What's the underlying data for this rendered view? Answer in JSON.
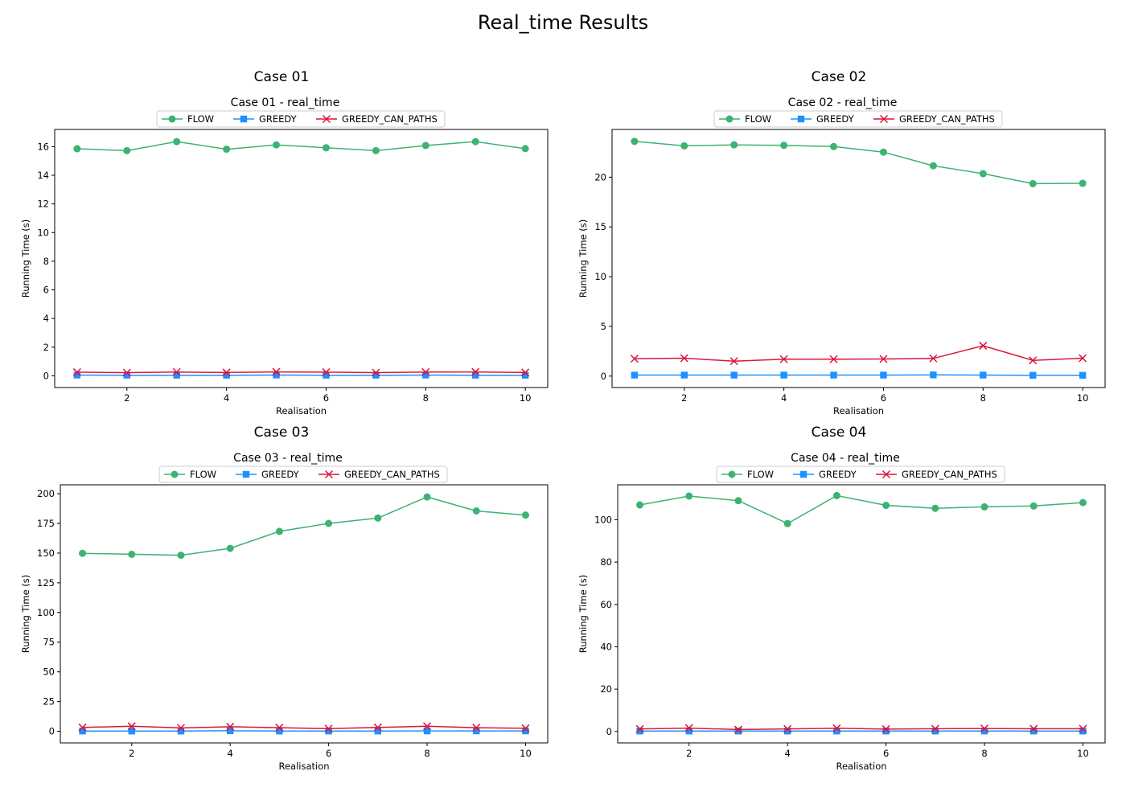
{
  "figure": {
    "title": "Real_time Results"
  },
  "series_names": [
    "FLOW",
    "GREEDY",
    "GREEDY_CAN_PATHS"
  ],
  "colors": {
    "FLOW": "#3cb371",
    "GREEDY": "#1e90ff",
    "GREEDY_CAN_PATHS": "#dc143c",
    "axis": "#000000"
  },
  "markers": {
    "FLOW": "circle",
    "GREEDY": "square",
    "GREEDY_CAN_PATHS": "x"
  },
  "chart_data": [
    {
      "type": "line",
      "case_title": "Case 01",
      "title": "Case 01 - real_time",
      "xlabel": "Realisation",
      "ylabel": "Running Time (s)",
      "x": [
        1,
        2,
        3,
        4,
        5,
        6,
        7,
        8,
        9,
        10
      ],
      "xticks": [
        2,
        4,
        6,
        8,
        10
      ],
      "yticks": [
        0,
        2,
        4,
        6,
        8,
        10,
        12,
        14,
        16
      ],
      "ylim": [
        -0.82,
        17.2
      ],
      "legend": "top-center, above plot",
      "series": [
        {
          "name": "FLOW",
          "values": [
            15.85,
            15.72,
            16.35,
            15.82,
            16.12,
            15.92,
            15.72,
            16.08,
            16.35,
            15.86
          ]
        },
        {
          "name": "GREEDY",
          "values": [
            0.05,
            0.04,
            0.04,
            0.04,
            0.05,
            0.04,
            0.04,
            0.05,
            0.04,
            0.04
          ]
        },
        {
          "name": "GREEDY_CAN_PATHS",
          "values": [
            0.25,
            0.22,
            0.26,
            0.23,
            0.27,
            0.25,
            0.22,
            0.26,
            0.27,
            0.23
          ]
        }
      ]
    },
    {
      "type": "line",
      "case_title": "Case 02",
      "title": "Case 02 - real_time",
      "xlabel": "Realisation",
      "ylabel": "Running Time (s)",
      "x": [
        1,
        2,
        3,
        4,
        5,
        6,
        7,
        8,
        9,
        10
      ],
      "xticks": [
        2,
        4,
        6,
        8,
        10
      ],
      "yticks": [
        0,
        5,
        10,
        15,
        20
      ],
      "ylim": [
        -1.15,
        24.8
      ],
      "legend": "top-center, above plot",
      "series": [
        {
          "name": "FLOW",
          "values": [
            23.6,
            23.15,
            23.25,
            23.2,
            23.08,
            22.52,
            21.15,
            20.35,
            19.35,
            19.38
          ]
        },
        {
          "name": "GREEDY",
          "values": [
            0.1,
            0.1,
            0.1,
            0.1,
            0.1,
            0.1,
            0.12,
            0.1,
            0.08,
            0.08
          ]
        },
        {
          "name": "GREEDY_CAN_PATHS",
          "values": [
            1.75,
            1.8,
            1.5,
            1.7,
            1.7,
            1.72,
            1.78,
            3.05,
            1.58,
            1.8
          ]
        }
      ]
    },
    {
      "type": "line",
      "case_title": "Case 03",
      "title": "Case 03 - real_time",
      "xlabel": "Realisation",
      "ylabel": "Running Time (s)",
      "x": [
        1,
        2,
        3,
        4,
        5,
        6,
        7,
        8,
        9,
        10
      ],
      "xticks": [
        2,
        4,
        6,
        8,
        10
      ],
      "yticks": [
        0,
        25,
        50,
        75,
        100,
        125,
        150,
        175,
        200
      ],
      "ylim": [
        -9.8,
        207.5
      ],
      "legend": "top-center, above plot",
      "series": [
        {
          "name": "FLOW",
          "values": [
            149.8,
            149.0,
            148.2,
            154.0,
            168.3,
            175.0,
            179.5,
            197.3,
            185.5,
            182.0
          ]
        },
        {
          "name": "GREEDY",
          "values": [
            0.2,
            0.2,
            0.2,
            0.4,
            0.2,
            0.2,
            0.2,
            0.3,
            0.3,
            0.3
          ]
        },
        {
          "name": "GREEDY_CAN_PATHS",
          "values": [
            3.2,
            4.2,
            2.8,
            3.8,
            3.0,
            2.2,
            3.2,
            4.2,
            3.0,
            2.5
          ]
        }
      ]
    },
    {
      "type": "line",
      "case_title": "Case 04",
      "title": "Case 04 - real_time",
      "xlabel": "Realisation",
      "ylabel": "Running Time (s)",
      "x": [
        1,
        2,
        3,
        4,
        5,
        6,
        7,
        8,
        9,
        10
      ],
      "xticks": [
        2,
        4,
        6,
        8,
        10
      ],
      "yticks": [
        0,
        20,
        40,
        60,
        80,
        100
      ],
      "ylim": [
        -5.4,
        116.5
      ],
      "legend": "top-center, above plot",
      "series": [
        {
          "name": "FLOW",
          "values": [
            107.0,
            111.2,
            109.0,
            98.2,
            111.4,
            106.8,
            105.4,
            106.1,
            106.5,
            108.1
          ]
        },
        {
          "name": "GREEDY",
          "values": [
            0.2,
            0.2,
            0.2,
            0.2,
            0.2,
            0.2,
            0.2,
            0.2,
            0.2,
            0.2
          ]
        },
        {
          "name": "GREEDY_CAN_PATHS",
          "values": [
            1.2,
            1.6,
            0.9,
            1.2,
            1.5,
            1.1,
            1.3,
            1.4,
            1.3,
            1.3
          ]
        }
      ]
    }
  ]
}
